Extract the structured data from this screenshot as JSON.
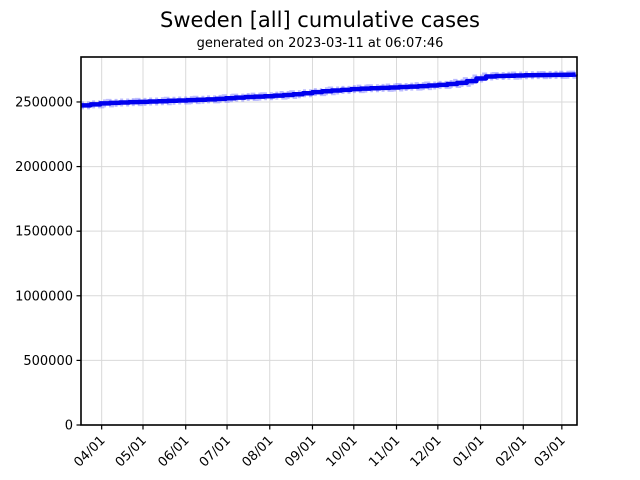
{
  "title": "Sweden [all] cumulative cases",
  "subtitle": "generated on 2023-03-11 at 06:07:46",
  "chart_data": {
    "type": "line",
    "title": "Sweden [all] cumulative cases",
    "subtitle": "generated on 2023-03-11 at 06:07:46",
    "xlabel": "",
    "ylabel": "",
    "legend": "none",
    "grid": true,
    "grid_color": "#d9d9d9",
    "line_color": "#0000ee",
    "line_halo_color": "#6a6aff",
    "spine_color": "#000000",
    "step_style": "post",
    "x_start": "2022-03-17",
    "x_end": "2023-03-12",
    "ylim": [
      0,
      2848000
    ],
    "y_ticks": [
      0,
      500000,
      1000000,
      1500000,
      2000000,
      2500000
    ],
    "x_ticks": [
      {
        "date": "2022-04-01",
        "label": "04/01"
      },
      {
        "date": "2022-05-01",
        "label": "05/01"
      },
      {
        "date": "2022-06-01",
        "label": "06/01"
      },
      {
        "date": "2022-07-01",
        "label": "07/01"
      },
      {
        "date": "2022-08-01",
        "label": "08/01"
      },
      {
        "date": "2022-09-01",
        "label": "09/01"
      },
      {
        "date": "2022-10-01",
        "label": "10/01"
      },
      {
        "date": "2022-11-01",
        "label": "11/01"
      },
      {
        "date": "2022-12-01",
        "label": "12/01"
      },
      {
        "date": "2023-01-01",
        "label": "01/01"
      },
      {
        "date": "2023-02-01",
        "label": "02/01"
      },
      {
        "date": "2023-03-01",
        "label": "03/01"
      }
    ],
    "points": [
      {
        "date": "2022-03-17",
        "value": 2474000
      },
      {
        "date": "2022-03-24",
        "value": 2481000
      },
      {
        "date": "2022-03-31",
        "value": 2489000
      },
      {
        "date": "2022-04-07",
        "value": 2493000
      },
      {
        "date": "2022-04-14",
        "value": 2496000
      },
      {
        "date": "2022-04-21",
        "value": 2499000
      },
      {
        "date": "2022-04-28",
        "value": 2501000
      },
      {
        "date": "2022-05-05",
        "value": 2504000
      },
      {
        "date": "2022-05-12",
        "value": 2506000
      },
      {
        "date": "2022-05-19",
        "value": 2509000
      },
      {
        "date": "2022-05-26",
        "value": 2511000
      },
      {
        "date": "2022-06-02",
        "value": 2514000
      },
      {
        "date": "2022-06-09",
        "value": 2517000
      },
      {
        "date": "2022-06-16",
        "value": 2520000
      },
      {
        "date": "2022-06-23",
        "value": 2524000
      },
      {
        "date": "2022-06-30",
        "value": 2529000
      },
      {
        "date": "2022-07-07",
        "value": 2534000
      },
      {
        "date": "2022-07-14",
        "value": 2538000
      },
      {
        "date": "2022-07-21",
        "value": 2541000
      },
      {
        "date": "2022-07-28",
        "value": 2544000
      },
      {
        "date": "2022-08-04",
        "value": 2549000
      },
      {
        "date": "2022-08-11",
        "value": 2554000
      },
      {
        "date": "2022-08-18",
        "value": 2560000
      },
      {
        "date": "2022-08-25",
        "value": 2567000
      },
      {
        "date": "2022-09-01",
        "value": 2576000
      },
      {
        "date": "2022-09-08",
        "value": 2583000
      },
      {
        "date": "2022-09-15",
        "value": 2589000
      },
      {
        "date": "2022-09-22",
        "value": 2594000
      },
      {
        "date": "2022-09-29",
        "value": 2599000
      },
      {
        "date": "2022-10-06",
        "value": 2603000
      },
      {
        "date": "2022-10-13",
        "value": 2606000
      },
      {
        "date": "2022-10-20",
        "value": 2609000
      },
      {
        "date": "2022-10-27",
        "value": 2612000
      },
      {
        "date": "2022-11-03",
        "value": 2616000
      },
      {
        "date": "2022-11-10",
        "value": 2619000
      },
      {
        "date": "2022-11-17",
        "value": 2623000
      },
      {
        "date": "2022-11-24",
        "value": 2627000
      },
      {
        "date": "2022-12-01",
        "value": 2632000
      },
      {
        "date": "2022-12-08",
        "value": 2639000
      },
      {
        "date": "2022-12-15",
        "value": 2648000
      },
      {
        "date": "2022-12-22",
        "value": 2661000
      },
      {
        "date": "2022-12-29",
        "value": 2682000
      },
      {
        "date": "2023-01-05",
        "value": 2697000
      },
      {
        "date": "2023-01-12",
        "value": 2701000
      },
      {
        "date": "2023-01-19",
        "value": 2703000
      },
      {
        "date": "2023-01-26",
        "value": 2705000
      },
      {
        "date": "2023-02-02",
        "value": 2707000
      },
      {
        "date": "2023-02-09",
        "value": 2708000
      },
      {
        "date": "2023-02-16",
        "value": 2709000
      },
      {
        "date": "2023-02-23",
        "value": 2710000
      },
      {
        "date": "2023-03-02",
        "value": 2711000
      },
      {
        "date": "2023-03-09",
        "value": 2712000
      },
      {
        "date": "2023-03-11",
        "value": 2713000
      }
    ]
  }
}
